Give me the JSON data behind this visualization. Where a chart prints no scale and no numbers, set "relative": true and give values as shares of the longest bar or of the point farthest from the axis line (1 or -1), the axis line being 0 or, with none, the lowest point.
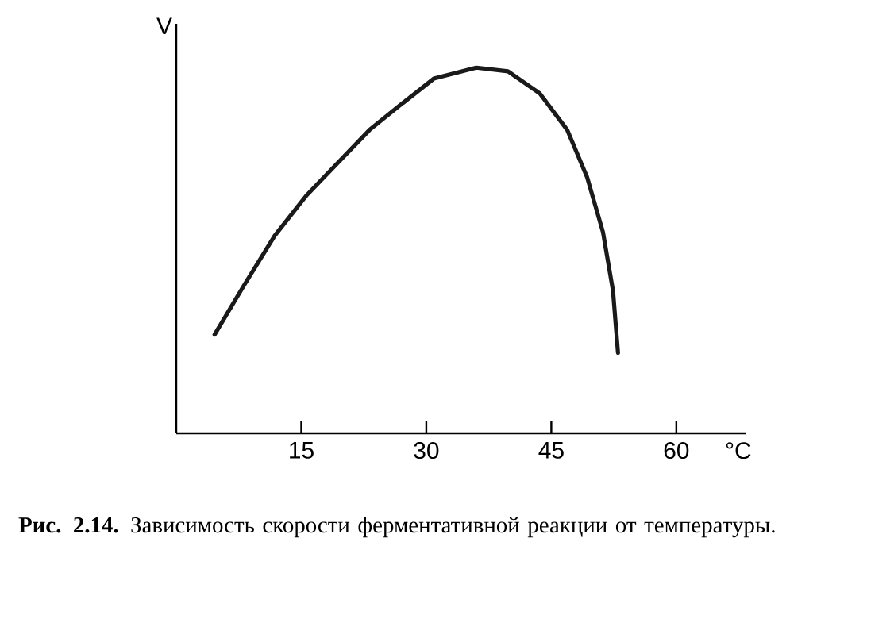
{
  "chart_data": {
    "type": "line",
    "relative": true,
    "title": "**Рис. 2.14.** Зависимость скорости ферментативной реакции от температуры.",
    "xlabel": "°C",
    "ylabel": "V",
    "xlim": [
      0,
      68.4
    ],
    "xticks": [
      15,
      30,
      45,
      60
    ],
    "x": [
      4.6,
      8.0,
      11.8,
      15.6,
      19.4,
      23.2,
      27.0,
      30.9,
      36.0,
      39.8,
      43.6,
      46.9,
      49.3,
      51.2,
      52.4,
      53.0
    ],
    "values": [
      0.27,
      0.4,
      0.54,
      0.65,
      0.74,
      0.83,
      0.9,
      0.97,
      1.0,
      0.99,
      0.93,
      0.83,
      0.7,
      0.55,
      0.39,
      0.22
    ],
    "color": "#1a1a1a",
    "marker": "none",
    "line_style": "solid"
  }
}
